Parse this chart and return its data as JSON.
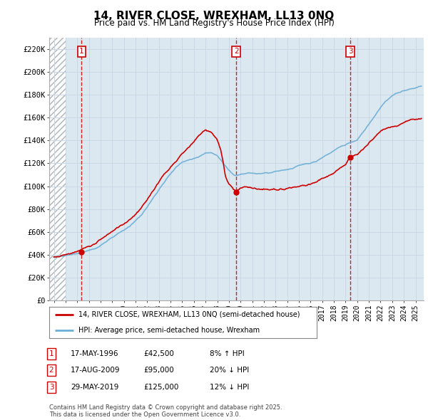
{
  "title": "14, RIVER CLOSE, WREXHAM, LL13 0NQ",
  "subtitle": "Price paid vs. HM Land Registry's House Price Index (HPI)",
  "ylim": [
    0,
    230000
  ],
  "yticks": [
    0,
    20000,
    40000,
    60000,
    80000,
    100000,
    120000,
    140000,
    160000,
    180000,
    200000,
    220000
  ],
  "xlim_start": 1993.6,
  "xlim_end": 2025.7,
  "hpi_color": "#6baed6",
  "price_color": "#cc0000",
  "vline_color": "#cc0000",
  "grid_color": "#c8d8e8",
  "background_color": "#dce8f0",
  "sale_dates": [
    1996.38,
    2009.63,
    2019.41
  ],
  "sale_prices": [
    42500,
    95000,
    125000
  ],
  "sale_labels": [
    "1",
    "2",
    "3"
  ],
  "legend_entries": [
    "14, RIVER CLOSE, WREXHAM, LL13 0NQ (semi-detached house)",
    "HPI: Average price, semi-detached house, Wrexham"
  ],
  "table_rows": [
    [
      "1",
      "17-MAY-1996",
      "£42,500",
      "8% ↑ HPI"
    ],
    [
      "2",
      "17-AUG-2009",
      "£95,000",
      "20% ↓ HPI"
    ],
    [
      "3",
      "29-MAY-2019",
      "£125,000",
      "12% ↓ HPI"
    ]
  ],
  "footer_text": "Contains HM Land Registry data © Crown copyright and database right 2025.\nThis data is licensed under the Open Government Licence v3.0.",
  "hatch_region_end": 1995.0
}
